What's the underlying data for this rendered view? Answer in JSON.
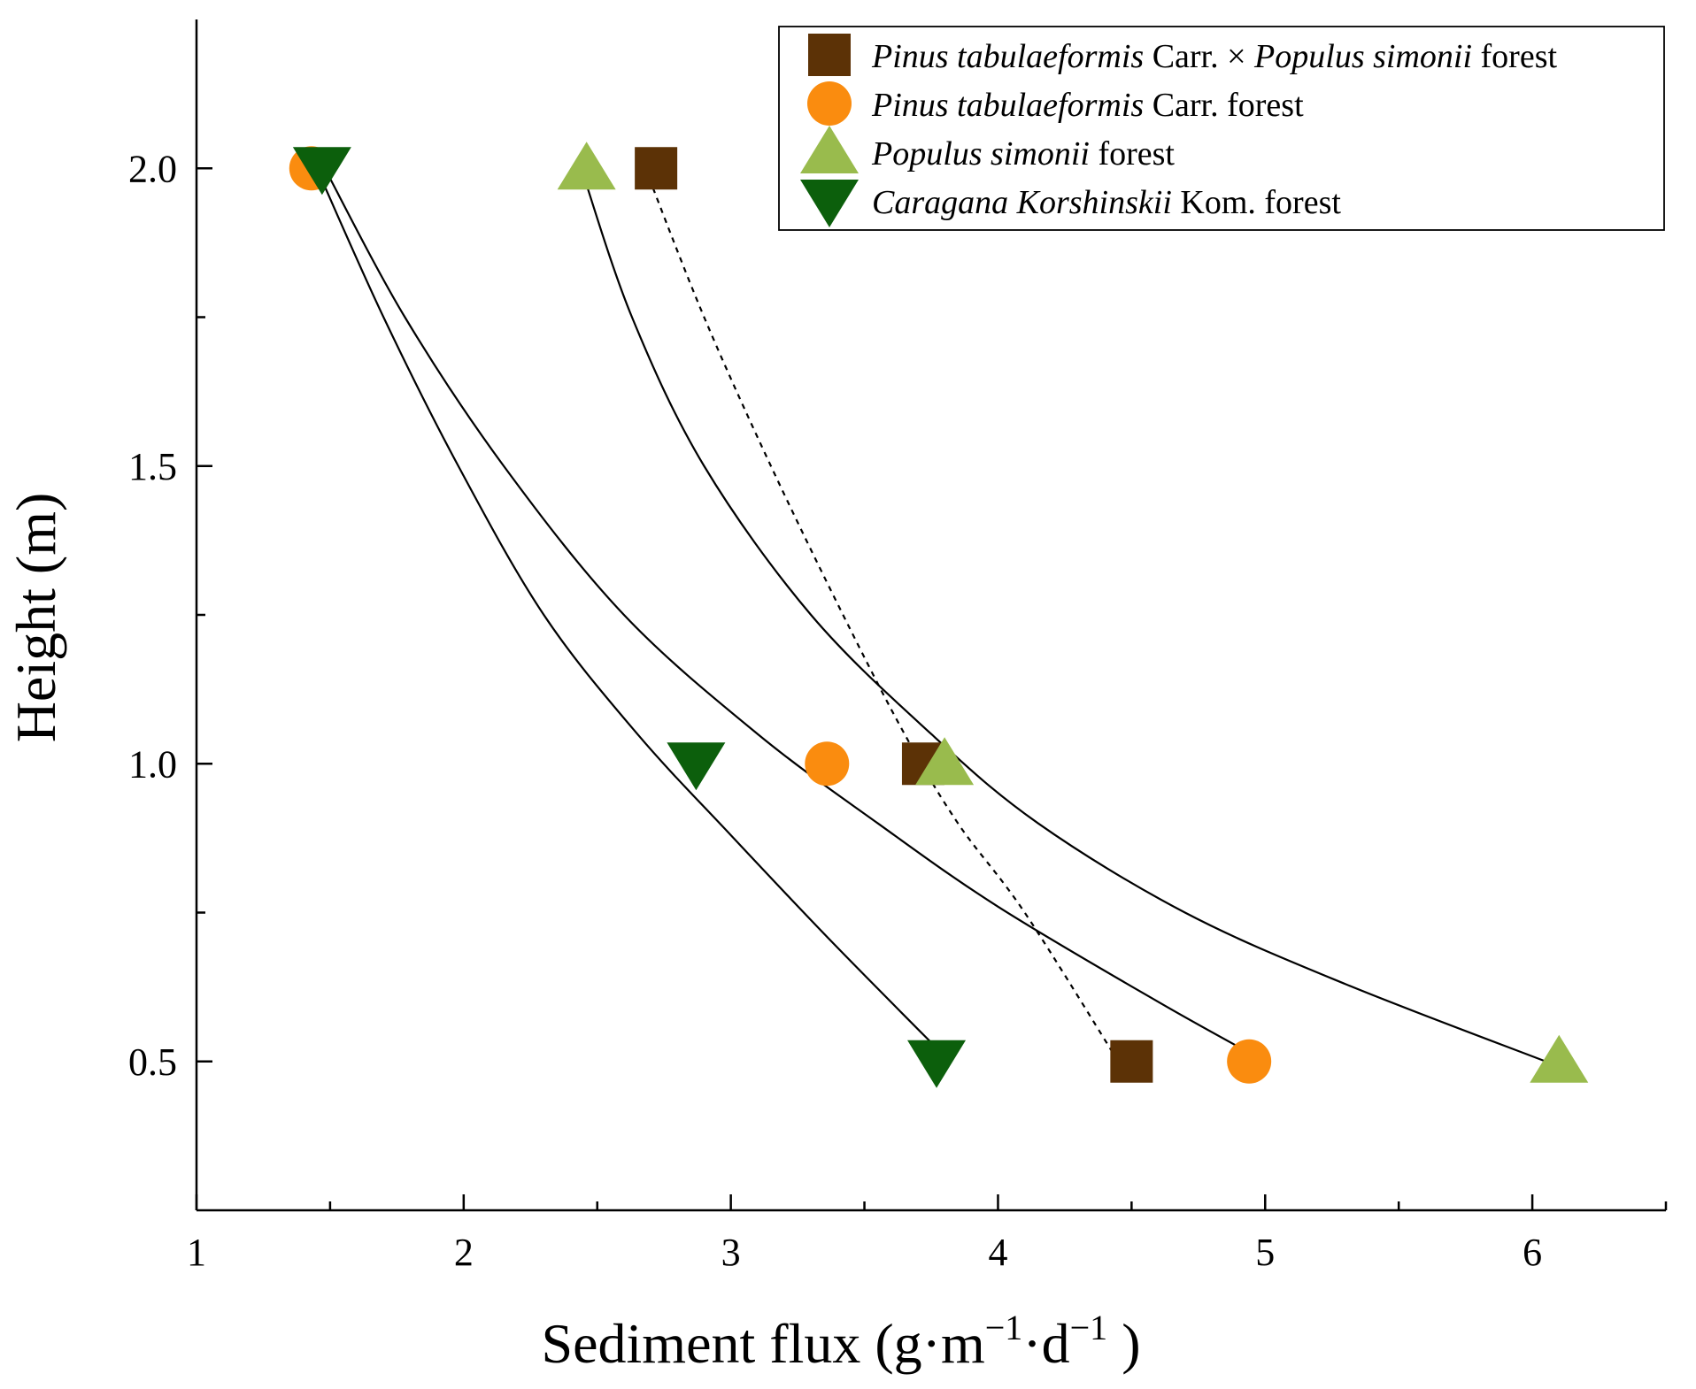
{
  "chart_data": {
    "type": "scatter",
    "title": "",
    "xlabel": "Sediment flux (g·m",
    "xlabel_sup1": "−1",
    "xlabel_mid": "·d",
    "xlabel_sup2": "−1",
    "xlabel_end": " )",
    "ylabel": "Height (m)",
    "xlim": [
      1,
      6.5
    ],
    "ylim": [
      0.25,
      2.25
    ],
    "x_major_ticks": [
      1,
      2,
      3,
      4,
      5,
      6
    ],
    "x_minor_ticks": [
      1.5,
      2.5,
      3.5,
      4.5,
      5.5,
      6.5
    ],
    "y_major_ticks": [
      0.5,
      1.0,
      1.5,
      2.0
    ],
    "y_tick_labels": [
      "0.5",
      "1.0",
      "1.5",
      "2.0"
    ],
    "y_minor_ticks": [
      0.75,
      1.25,
      1.75
    ],
    "legend_position": "top-right",
    "series": [
      {
        "name": "Pinus tabulaeformis Carr. × Populus simonii forest",
        "legend_parts": [
          {
            "text": "Pinus tabulaeformis",
            "italic": true
          },
          {
            "text": " Carr. × ",
            "italic": false
          },
          {
            "text": "Populus simonii",
            "italic": true
          },
          {
            "text": " forest",
            "italic": false
          }
        ],
        "marker": "square",
        "color": "#5c3206",
        "line_style": "dashed",
        "points": [
          {
            "x": 2.72,
            "y": 2.0
          },
          {
            "x": 3.72,
            "y": 1.0
          },
          {
            "x": 4.5,
            "y": 0.5
          }
        ],
        "fit_curve": [
          {
            "x": 2.68,
            "y": 2.0
          },
          {
            "x": 2.9,
            "y": 1.75
          },
          {
            "x": 3.15,
            "y": 1.5
          },
          {
            "x": 3.42,
            "y": 1.25
          },
          {
            "x": 3.65,
            "y": 1.05
          },
          {
            "x": 3.85,
            "y": 0.9
          },
          {
            "x": 4.1,
            "y": 0.75
          },
          {
            "x": 4.45,
            "y": 0.5
          }
        ]
      },
      {
        "name": "Pinus tabulaeformis Carr. forest",
        "legend_parts": [
          {
            "text": "Pinus tabulaeformis",
            "italic": true
          },
          {
            "text": " Carr. forest",
            "italic": false
          }
        ],
        "marker": "circle",
        "color": "#fa8c0f",
        "line_style": "solid",
        "points": [
          {
            "x": 1.43,
            "y": 2.0
          },
          {
            "x": 3.36,
            "y": 1.0
          },
          {
            "x": 4.94,
            "y": 0.5
          }
        ],
        "fit_curve": [
          {
            "x": 1.48,
            "y": 2.0
          },
          {
            "x": 1.78,
            "y": 1.75
          },
          {
            "x": 2.15,
            "y": 1.5
          },
          {
            "x": 2.6,
            "y": 1.25
          },
          {
            "x": 3.1,
            "y": 1.05
          },
          {
            "x": 3.55,
            "y": 0.9
          },
          {
            "x": 4.0,
            "y": 0.76
          },
          {
            "x": 4.6,
            "y": 0.6
          },
          {
            "x": 5.0,
            "y": 0.5
          }
        ]
      },
      {
        "name": "Populus simonii forest",
        "legend_parts": [
          {
            "text": "Populus simonii",
            "italic": true
          },
          {
            "text": " forest",
            "italic": false
          }
        ],
        "marker": "triangle-up",
        "color": "#99bb4d",
        "line_style": "solid",
        "points": [
          {
            "x": 2.46,
            "y": 2.0
          },
          {
            "x": 3.8,
            "y": 1.0
          },
          {
            "x": 6.1,
            "y": 0.5
          }
        ],
        "fit_curve": [
          {
            "x": 2.44,
            "y": 2.0
          },
          {
            "x": 2.63,
            "y": 1.75
          },
          {
            "x": 2.9,
            "y": 1.5
          },
          {
            "x": 3.3,
            "y": 1.25
          },
          {
            "x": 3.75,
            "y": 1.05
          },
          {
            "x": 4.15,
            "y": 0.9
          },
          {
            "x": 4.7,
            "y": 0.75
          },
          {
            "x": 5.3,
            "y": 0.63
          },
          {
            "x": 6.05,
            "y": 0.5
          }
        ]
      },
      {
        "name": "Caragana Korshinskii Kom. forest",
        "legend_parts": [
          {
            "text": "Caragana Korshinskii",
            "italic": true
          },
          {
            "text": " Kom. forest",
            "italic": false
          }
        ],
        "marker": "triangle-down",
        "color": "#0c5f0c",
        "line_style": "solid",
        "points": [
          {
            "x": 1.47,
            "y": 2.0
          },
          {
            "x": 2.87,
            "y": 1.0
          },
          {
            "x": 3.77,
            "y": 0.5
          }
        ],
        "fit_curve": [
          {
            "x": 1.45,
            "y": 2.0
          },
          {
            "x": 1.7,
            "y": 1.75
          },
          {
            "x": 1.98,
            "y": 1.5
          },
          {
            "x": 2.3,
            "y": 1.25
          },
          {
            "x": 2.65,
            "y": 1.05
          },
          {
            "x": 3.0,
            "y": 0.88
          },
          {
            "x": 3.38,
            "y": 0.7
          },
          {
            "x": 3.82,
            "y": 0.5
          }
        ]
      }
    ]
  }
}
